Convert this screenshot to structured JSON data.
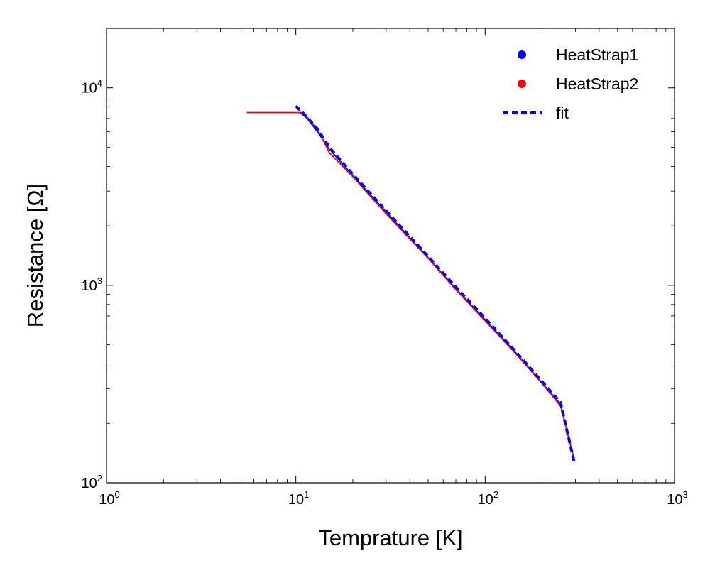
{
  "chart_data": {
    "type": "line",
    "xscale": "log",
    "yscale": "log",
    "xlim": [
      1,
      1000
    ],
    "ylim": [
      100,
      20000
    ],
    "xlabel": "Temprature [K]",
    "ylabel": "Resistance [Ω]",
    "x_ticks": [
      {
        "value": 1,
        "base": "10",
        "exp": "0"
      },
      {
        "value": 10,
        "base": "10",
        "exp": "1"
      },
      {
        "value": 100,
        "base": "10",
        "exp": "2"
      },
      {
        "value": 1000,
        "base": "10",
        "exp": "3"
      }
    ],
    "y_ticks": [
      {
        "value": 100,
        "base": "10",
        "exp": "2"
      },
      {
        "value": 1000,
        "base": "10",
        "exp": "3"
      },
      {
        "value": 10000,
        "base": "10",
        "exp": "4"
      }
    ],
    "grid": false,
    "legend_position": "top-right",
    "series": [
      {
        "name": "HeatStrap1",
        "color": "#0000ff",
        "marker": "circle",
        "line_style": "solid",
        "points": [
          [
            10.5,
            7500
          ],
          [
            11.5,
            7000
          ],
          [
            13,
            6000
          ],
          [
            15,
            4900
          ],
          [
            20,
            3600
          ],
          [
            30,
            2350
          ],
          [
            50,
            1380
          ],
          [
            70,
            960
          ],
          [
            100,
            670
          ],
          [
            150,
            440
          ],
          [
            200,
            320
          ],
          [
            250,
            250
          ],
          [
            295,
            130
          ]
        ]
      },
      {
        "name": "HeatStrap2",
        "color": "#ff0000",
        "marker": "circle",
        "line_style": "solid",
        "points": [
          [
            5.5,
            7500
          ],
          [
            10.8,
            7500
          ],
          [
            12,
            6800
          ],
          [
            13.5,
            5800
          ],
          [
            15,
            4700
          ],
          [
            20,
            3550
          ],
          [
            30,
            2300
          ],
          [
            50,
            1370
          ],
          [
            70,
            950
          ],
          [
            100,
            660
          ],
          [
            150,
            435
          ],
          [
            200,
            318
          ],
          [
            250,
            245
          ],
          [
            295,
            132
          ]
        ]
      },
      {
        "name": "fit",
        "color": "#0000ff",
        "marker": "none",
        "line_style": "dashed",
        "points": [
          [
            10,
            8100
          ],
          [
            11,
            7400
          ],
          [
            13,
            6200
          ],
          [
            15,
            5000
          ],
          [
            20,
            3650
          ],
          [
            30,
            2380
          ],
          [
            50,
            1400
          ],
          [
            70,
            980
          ],
          [
            100,
            680
          ],
          [
            150,
            445
          ],
          [
            200,
            325
          ],
          [
            250,
            255
          ],
          [
            295,
            128
          ]
        ]
      }
    ]
  }
}
